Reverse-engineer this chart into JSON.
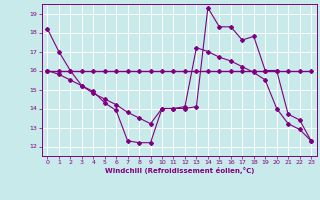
{
  "xlabel": "Windchill (Refroidissement éolien,°C)",
  "background_color": "#c8eaea",
  "grid_color": "#ffffff",
  "line_color": "#800080",
  "xlim": [
    -0.5,
    23.5
  ],
  "ylim": [
    11.5,
    19.5
  ],
  "yticks": [
    12,
    13,
    14,
    15,
    16,
    17,
    18,
    19
  ],
  "xticks": [
    0,
    1,
    2,
    3,
    4,
    5,
    6,
    7,
    8,
    9,
    10,
    11,
    12,
    13,
    14,
    15,
    16,
    17,
    18,
    19,
    20,
    21,
    22,
    23
  ],
  "series1_x": [
    0,
    1,
    2,
    3,
    4,
    5,
    6,
    7,
    8,
    9,
    10,
    11,
    12,
    13,
    14,
    15,
    16,
    17,
    18,
    19,
    20,
    21,
    22,
    23
  ],
  "series1_y": [
    18.2,
    17.0,
    16.0,
    15.2,
    14.9,
    14.3,
    13.9,
    12.3,
    12.2,
    12.2,
    14.0,
    14.0,
    14.0,
    14.1,
    19.3,
    18.3,
    18.3,
    17.6,
    17.8,
    16.0,
    16.0,
    13.7,
    13.4,
    12.3
  ],
  "series2_x": [
    0,
    1,
    2,
    3,
    4,
    5,
    6,
    7,
    8,
    9,
    10,
    11,
    12,
    13,
    14,
    15,
    16,
    17,
    18,
    19,
    20,
    21,
    22,
    23
  ],
  "series2_y": [
    16.0,
    16.0,
    16.0,
    16.0,
    16.0,
    16.0,
    16.0,
    16.0,
    16.0,
    16.0,
    16.0,
    16.0,
    16.0,
    16.0,
    16.0,
    16.0,
    16.0,
    16.0,
    16.0,
    16.0,
    16.0,
    16.0,
    16.0,
    16.0
  ],
  "series3_x": [
    0,
    1,
    2,
    3,
    4,
    5,
    6,
    7,
    8,
    9,
    10,
    11,
    12,
    13,
    14,
    15,
    16,
    17,
    18,
    19,
    20,
    21,
    22,
    23
  ],
  "series3_y": [
    16.0,
    15.8,
    15.5,
    15.2,
    14.8,
    14.5,
    14.2,
    13.8,
    13.5,
    13.2,
    14.0,
    14.0,
    14.1,
    17.2,
    17.0,
    16.7,
    16.5,
    16.2,
    15.9,
    15.5,
    14.0,
    13.2,
    12.9,
    12.3
  ]
}
